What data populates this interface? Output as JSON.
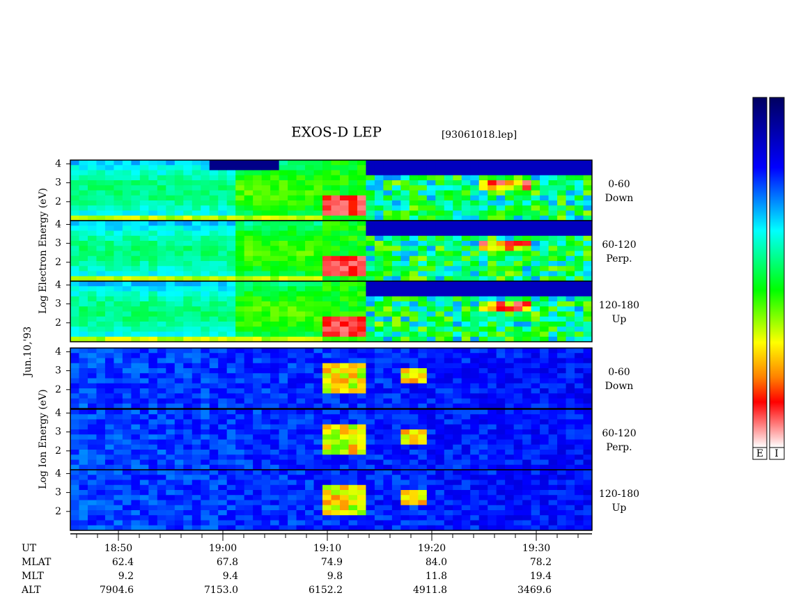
{
  "header": {
    "title": "EXOS-D LEP",
    "file": "[93061018.lep]"
  },
  "date": "Jun.10,'93",
  "panel_groups": [
    {
      "axis_label": "Log Electron Energy (eV)",
      "ylim": [
        1,
        4.2
      ],
      "yticks": [
        2,
        3,
        4
      ],
      "panels": [
        {
          "angle": "0-60",
          "direction": "Down"
        },
        {
          "angle": "60-120",
          "direction": "Perp."
        },
        {
          "angle": "120-180",
          "direction": "Up"
        }
      ]
    },
    {
      "axis_label": "Log Ion Energy (eV)",
      "ylim": [
        1,
        4.2
      ],
      "yticks": [
        2,
        3,
        4
      ],
      "panels": [
        {
          "angle": "0-60",
          "direction": "Down"
        },
        {
          "angle": "60-120",
          "direction": "Perp."
        },
        {
          "angle": "120-180",
          "direction": "Up"
        }
      ]
    }
  ],
  "time_axis": {
    "ticks": [
      "18:50",
      "19:00",
      "19:10",
      "19:20",
      "19:30"
    ]
  },
  "ephemeris": {
    "rows": [
      {
        "label": "UT"
      },
      {
        "label": "MLAT",
        "values": [
          "62.4",
          "67.8",
          "74.9",
          "84.0",
          "78.2"
        ]
      },
      {
        "label": "MLT",
        "values": [
          "9.2",
          "9.4",
          "9.8",
          "11.8",
          "19.4"
        ]
      },
      {
        "label": "ALT",
        "values": [
          "7904.6",
          "7153.0",
          "6152.2",
          "4911.8",
          "3469.6"
        ]
      }
    ]
  },
  "colorbar": {
    "labels": [
      "E",
      "I"
    ]
  }
}
